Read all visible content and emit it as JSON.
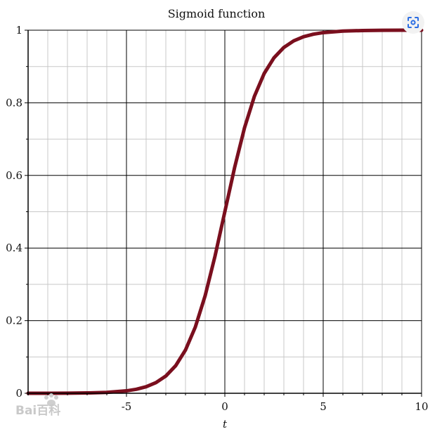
{
  "chart_data": {
    "type": "line",
    "title": "Sigmoid function",
    "xlabel": "t",
    "ylabel": "",
    "xlim": [
      -10,
      10
    ],
    "ylim": [
      0,
      1
    ],
    "x_ticks": [
      -5,
      0,
      5,
      10
    ],
    "x_tick_labels": [
      "-5",
      "0",
      "5",
      "10"
    ],
    "y_ticks": [
      0,
      0.2,
      0.4,
      0.6,
      0.8,
      1
    ],
    "y_tick_labels": [
      "0",
      "0.2",
      "0.4",
      "0.6",
      "0.8",
      "1"
    ],
    "grid": true,
    "series": [
      {
        "color": "#7a0f1e",
        "x": [
          -10,
          -9,
          -8,
          -7,
          -6,
          -5,
          -4.5,
          -4,
          -3.5,
          -3,
          -2.5,
          -2,
          -1.5,
          -1,
          -0.5,
          0,
          0.5,
          1,
          1.5,
          2,
          2.5,
          3,
          3.5,
          4,
          4.5,
          5,
          6,
          7,
          8,
          9,
          10
        ],
        "y": [
          5e-05,
          0.00012,
          0.00034,
          0.00091,
          0.00247,
          0.00669,
          0.01099,
          0.01799,
          0.02931,
          0.04743,
          0.07586,
          0.1192,
          0.18243,
          0.26894,
          0.37754,
          0.5,
          0.62246,
          0.73106,
          0.81757,
          0.8808,
          0.92414,
          0.95257,
          0.97069,
          0.98201,
          0.98901,
          0.99331,
          0.99753,
          0.99909,
          0.99966,
          0.99988,
          0.99995
        ]
      }
    ]
  },
  "watermark": {
    "text": "Bai百科"
  },
  "ui": {
    "lens_icon": "image-search-icon"
  }
}
